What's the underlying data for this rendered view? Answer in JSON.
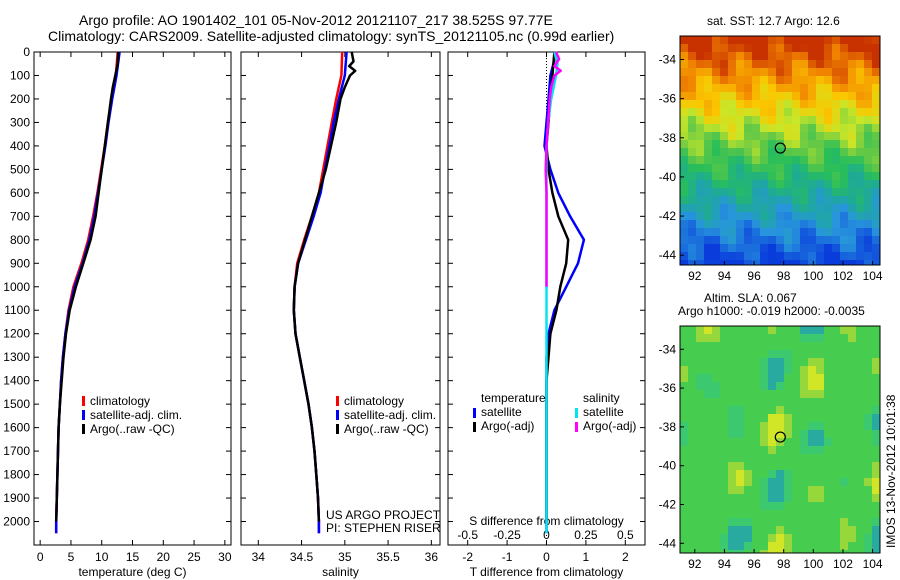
{
  "header": {
    "line1": "Argo profile: AO 1901402_101 05-Nov-2012 20121107_217 38.525S 97.77E",
    "line2": "Climatology: CARS2009. Satellite-adjusted climatology: synTS_20121105.nc (0.99d earlier)"
  },
  "credits": {
    "project": "US ARGO PROJECT",
    "pi": "PI: STEPHEN RISER",
    "side": "IMOS 13-Nov-2012 10:01:38"
  },
  "colors": {
    "climatology": "#ff0000",
    "satellite": "#0000ff",
    "argo": "#000000",
    "salinity_satellite": "#00e5ee",
    "salinity_argo": "#ff00ff"
  },
  "chart_data": [
    {
      "type": "line",
      "name": "temperature-profile",
      "xlabel": "temperature (deg C)",
      "ylabel": "",
      "xlim": [
        -1,
        31
      ],
      "ylim": [
        2100,
        0
      ],
      "x_ticks": [
        "0",
        "5",
        "10",
        "15",
        "20",
        "25",
        "30"
      ],
      "x_tick_values": [
        0,
        5,
        10,
        15,
        20,
        25,
        30
      ],
      "y_ticks": [
        "0",
        "100",
        "200",
        "300",
        "400",
        "500",
        "600",
        "700",
        "800",
        "900",
        "1000",
        "1100",
        "1200",
        "1300",
        "1400",
        "1500",
        "1600",
        "1700",
        "1800",
        "1900",
        "2000"
      ],
      "y_tick_values": [
        0,
        100,
        200,
        300,
        400,
        500,
        600,
        700,
        800,
        900,
        1000,
        1100,
        1200,
        1300,
        1400,
        1500,
        1600,
        1700,
        1800,
        1900,
        2000
      ],
      "legend": [
        "climatology",
        "satellite-adj. clim.",
        "Argo(..raw -QC)"
      ],
      "series": [
        {
          "name": "climatology",
          "depth": [
            0,
            100,
            200,
            300,
            400,
            500,
            600,
            700,
            800,
            900,
            1000,
            1100,
            1200,
            1300,
            1400,
            1500,
            1600,
            1700,
            1800,
            1900,
            2000,
            2050
          ],
          "values": [
            12.6,
            12.3,
            11.6,
            11.0,
            10.5,
            9.9,
            9.3,
            8.6,
            7.8,
            6.7,
            5.4,
            4.6,
            4.1,
            3.7,
            3.4,
            3.2,
            3.0,
            2.9,
            2.8,
            2.7,
            2.6,
            2.6
          ]
        },
        {
          "name": "satellite-adj. clim.",
          "depth": [
            0,
            100,
            200,
            300,
            400,
            500,
            600,
            700,
            800,
            900,
            1000,
            1100,
            1200,
            1300,
            1400,
            1500,
            1600,
            1700,
            1800,
            1900,
            2000,
            2050
          ],
          "values": [
            12.9,
            12.4,
            11.7,
            11.1,
            10.6,
            10.0,
            9.4,
            8.8,
            8.0,
            6.9,
            5.6,
            4.7,
            4.1,
            3.7,
            3.4,
            3.2,
            3.0,
            2.9,
            2.8,
            2.7,
            2.6,
            2.6
          ]
        },
        {
          "name": "Argo(..raw -QC)",
          "depth": [
            0,
            50,
            100,
            150,
            200,
            300,
            400,
            500,
            600,
            700,
            800,
            900,
            1000,
            1100,
            1200,
            1300,
            1400,
            1500,
            1600,
            1700,
            1800,
            1900,
            2000
          ],
          "values": [
            12.7,
            12.6,
            12.2,
            11.8,
            11.5,
            11.0,
            10.5,
            10.0,
            9.5,
            9.0,
            8.2,
            7.0,
            5.8,
            4.8,
            4.2,
            3.8,
            3.5,
            3.2,
            3.0,
            2.9,
            2.8,
            2.7,
            2.6
          ]
        }
      ]
    },
    {
      "type": "line",
      "name": "salinity-profile",
      "xlabel": "salinity",
      "ylabel": "",
      "xlim": [
        33.8,
        36.1
      ],
      "ylim": [
        2100,
        0
      ],
      "x_ticks": [
        "34",
        "34.5",
        "35",
        "35.5",
        "36"
      ],
      "x_tick_values": [
        34,
        34.5,
        35,
        35.5,
        36
      ],
      "legend": [
        "climatology",
        "satellite-adj. clim.",
        "Argo(..raw -QC)"
      ],
      "series": [
        {
          "name": "climatology",
          "depth": [
            0,
            100,
            200,
            300,
            400,
            500,
            600,
            700,
            800,
            900,
            1000,
            1100,
            1200,
            1300,
            1400,
            1500,
            1600,
            1700,
            1800,
            1900,
            2000,
            2050
          ],
          "values": [
            34.97,
            34.96,
            34.9,
            34.85,
            34.8,
            34.75,
            34.7,
            34.62,
            34.53,
            34.45,
            34.42,
            34.41,
            34.43,
            34.48,
            34.53,
            34.58,
            34.62,
            34.65,
            34.67,
            34.69,
            34.7,
            34.7
          ]
        },
        {
          "name": "satellite-adj. clim.",
          "depth": [
            0,
            100,
            200,
            300,
            400,
            500,
            600,
            700,
            800,
            900,
            1000,
            1100,
            1200,
            1300,
            1400,
            1500,
            1600,
            1700,
            1800,
            1900,
            2000,
            2050
          ],
          "values": [
            35.02,
            35.0,
            34.93,
            34.87,
            34.82,
            34.77,
            34.72,
            34.64,
            34.55,
            34.46,
            34.42,
            34.41,
            34.43,
            34.48,
            34.53,
            34.58,
            34.62,
            34.65,
            34.67,
            34.69,
            34.7,
            34.7
          ]
        },
        {
          "name": "Argo(..raw -QC)",
          "depth": [
            0,
            40,
            60,
            80,
            100,
            150,
            200,
            300,
            400,
            500,
            600,
            700,
            800,
            900,
            1000,
            1100,
            1200,
            1300,
            1400,
            1500,
            1600,
            1700,
            1800,
            1900,
            2000
          ],
          "values": [
            35.08,
            35.1,
            35.05,
            35.12,
            35.06,
            35.0,
            34.95,
            34.9,
            34.84,
            34.78,
            34.7,
            34.62,
            34.54,
            34.46,
            34.42,
            34.41,
            34.43,
            34.48,
            34.53,
            34.58,
            34.62,
            34.65,
            34.67,
            34.69,
            34.7
          ]
        }
      ]
    },
    {
      "type": "line",
      "name": "difference-profile",
      "xlabel": "T difference from climatology",
      "xlabel_top": "S difference from climatology",
      "ylabel": "",
      "xlim": [
        -2.5,
        2.5
      ],
      "ylim": [
        2100,
        0
      ],
      "x_ticks": [
        "-2",
        "-1",
        "0",
        "1",
        "2"
      ],
      "x_tick_values": [
        -2,
        -1,
        0,
        1,
        2
      ],
      "x_ticks_top": [
        "-0.5",
        "-0.25",
        "0",
        "0.25",
        "0.5"
      ],
      "x_tick_values_top": [
        -0.5,
        -0.25,
        0,
        0.25,
        0.5
      ],
      "legend": [
        "temperature",
        "satellite",
        "Argo(-adj)",
        "salinity",
        "satellite",
        "Argo(-adj)"
      ],
      "series": [
        {
          "name": "temperature satellite",
          "depth": [
            0,
            100,
            200,
            300,
            400,
            500,
            600,
            700,
            800,
            900,
            1000,
            1100,
            1200,
            1300,
            1400,
            1500,
            1600,
            1700,
            1800,
            1900,
            2000,
            2050
          ],
          "values": [
            0.25,
            0.1,
            0.05,
            0.0,
            -0.05,
            0.1,
            0.3,
            0.6,
            0.95,
            0.8,
            0.5,
            0.2,
            0.05,
            0.0,
            0.0,
            0.0,
            0.0,
            0.0,
            0.0,
            0.0,
            0.0,
            0.0
          ]
        },
        {
          "name": "temperature Argo(-adj)",
          "depth": [
            0,
            100,
            200,
            300,
            400,
            500,
            600,
            700,
            800,
            900,
            1000,
            1100,
            1200,
            1300,
            1400,
            1500,
            1600,
            1700,
            1800,
            1900,
            2000
          ],
          "values": [
            0.2,
            0.15,
            0.1,
            0.05,
            0.0,
            0.05,
            0.15,
            0.3,
            0.55,
            0.5,
            0.35,
            0.25,
            0.1,
            0.05,
            0.0,
            0.0,
            0.0,
            0.0,
            0.0,
            0.0,
            0.0
          ]
        },
        {
          "name": "salinity satellite",
          "depth": [
            0,
            50,
            100,
            200,
            300,
            400,
            500,
            600,
            700,
            800,
            900,
            1000,
            1100,
            1200,
            1300,
            1400,
            1500,
            1600,
            1700,
            1800,
            1900,
            2000,
            2050
          ],
          "values": [
            0.05,
            0.07,
            0.06,
            0.03,
            0.01,
            0.0,
            0.0,
            0.0,
            0.0,
            0.0,
            0.0,
            0.0,
            0.0,
            0.0,
            0.0,
            0.0,
            0.0,
            0.0,
            0.0,
            0.0,
            0.0,
            0.0,
            0.0
          ]
        },
        {
          "name": "salinity Argo(-adj)",
          "depth": [
            0,
            30,
            60,
            80,
            100,
            150,
            200,
            300,
            400,
            500,
            600,
            700,
            800,
            900,
            1000
          ],
          "values": [
            0.06,
            0.08,
            0.05,
            0.09,
            0.05,
            0.03,
            0.02,
            0.01,
            0.0,
            -0.005,
            0.0,
            0.0,
            0.0,
            0.0,
            0.0
          ]
        }
      ]
    },
    {
      "type": "heatmap",
      "name": "sst-map",
      "title": "sat. SST: 12.7  Argo: 12.6",
      "xlim": [
        91,
        104.5
      ],
      "ylim": [
        -44.5,
        -32.8
      ],
      "x_ticks": [
        "92",
        "94",
        "96",
        "98",
        "100",
        "102",
        "104"
      ],
      "x_tick_values": [
        92,
        94,
        96,
        98,
        100,
        102,
        104
      ],
      "y_ticks": [
        "-34",
        "-36",
        "-38",
        "-40",
        "-42",
        "-44"
      ],
      "y_tick_values": [
        -34,
        -36,
        -38,
        -40,
        -42,
        -44
      ],
      "marker": {
        "lon": 97.77,
        "lat": -38.525
      }
    },
    {
      "type": "heatmap",
      "name": "sla-map",
      "title": "Altim. SLA: 0.067",
      "subtitle": "Argo h1000: -0.019 h2000: -0.0035",
      "xlim": [
        91,
        104.5
      ],
      "ylim": [
        -44.5,
        -32.8
      ],
      "x_ticks": [
        "92",
        "94",
        "96",
        "98",
        "100",
        "102",
        "104"
      ],
      "x_tick_values": [
        92,
        94,
        96,
        98,
        100,
        102,
        104
      ],
      "y_ticks": [
        "-34",
        "-36",
        "-38",
        "-40",
        "-42",
        "-44"
      ],
      "y_tick_values": [
        -34,
        -36,
        -38,
        -40,
        -42,
        -44
      ],
      "marker": {
        "lon": 97.77,
        "lat": -38.525
      }
    }
  ]
}
